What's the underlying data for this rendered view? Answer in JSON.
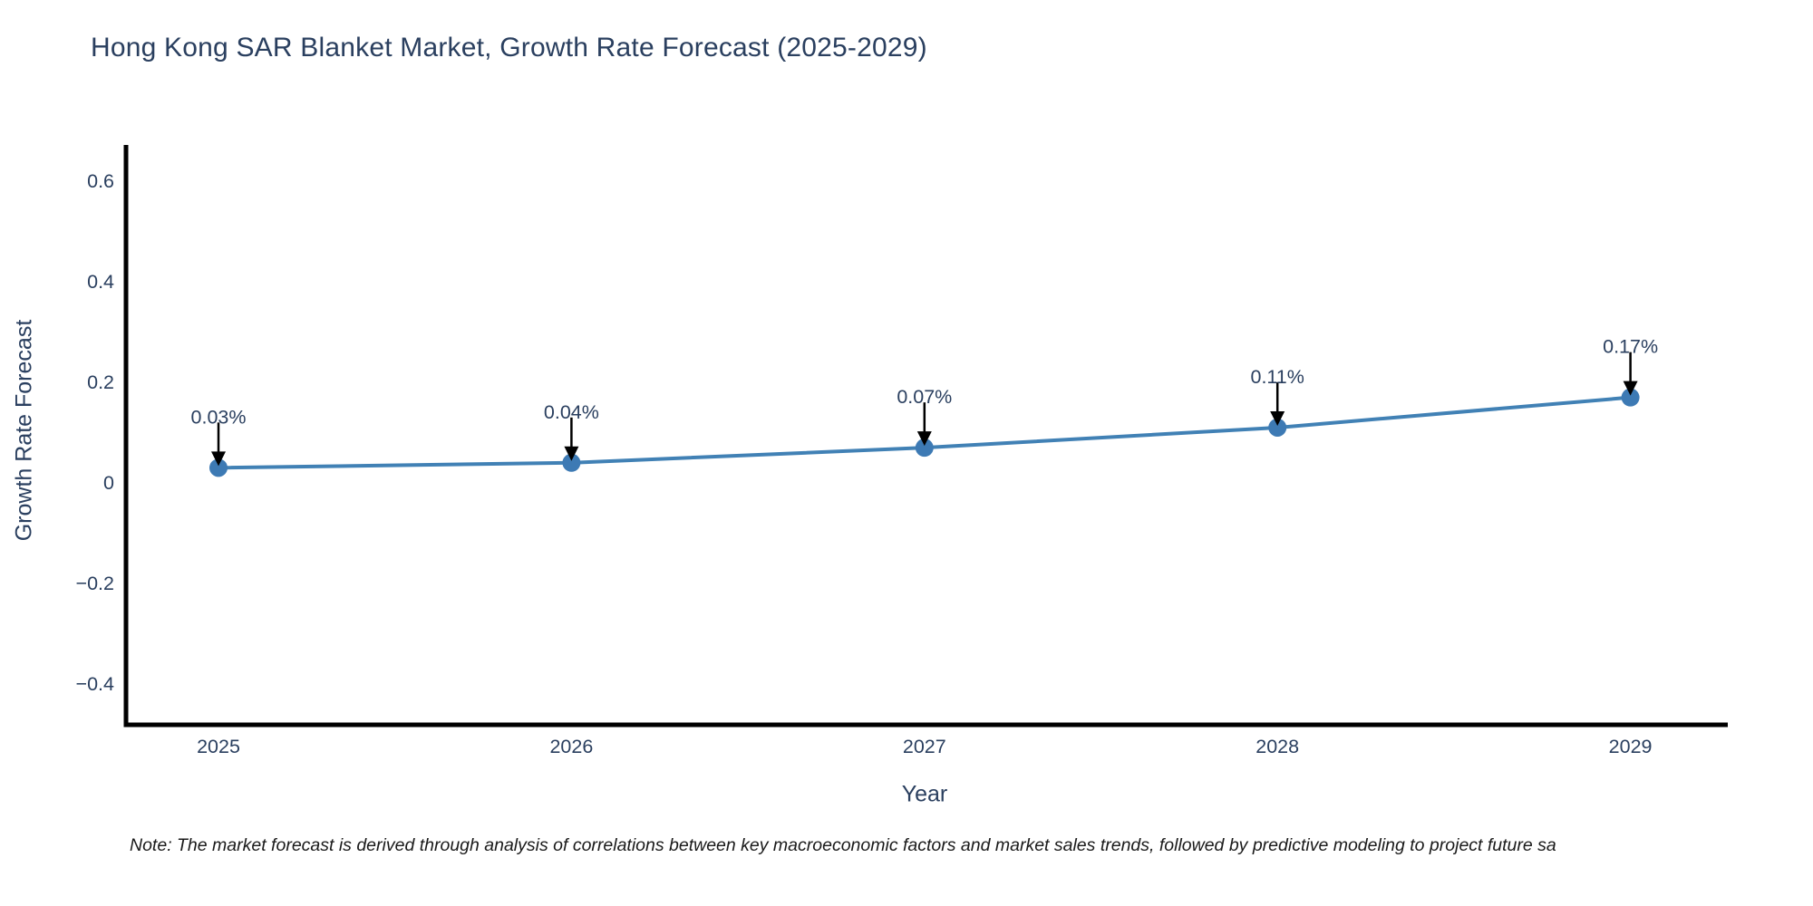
{
  "title": "Hong Kong SAR Blanket Market, Growth Rate Forecast (2025-2029)",
  "note": "Note: The market forecast is derived through analysis of correlations between key macroeconomic factors and market sales trends, followed by predictive modeling to project future sa",
  "chart_data": {
    "type": "line",
    "title": "Hong Kong SAR Blanket Market, Growth Rate Forecast (2025-2029)",
    "xlabel": "Year",
    "ylabel": "Growth Rate Forecast",
    "x": [
      2025,
      2026,
      2027,
      2028,
      2029
    ],
    "values": [
      0.03,
      0.04,
      0.07,
      0.11,
      0.17
    ],
    "point_labels": [
      "0.03%",
      "0.04%",
      "0.07%",
      "0.11%",
      "0.17%"
    ],
    "xticks": [
      "2025",
      "2026",
      "2027",
      "2028",
      "2029"
    ],
    "yticks": [
      0.6,
      0.4,
      0.2,
      0,
      -0.2,
      -0.4
    ],
    "ylim": [
      -0.48,
      0.67
    ],
    "grid": false,
    "legend": "none",
    "colors": {
      "line": "#4181b5",
      "marker": "#3d7ab4",
      "axis": "#000000",
      "text": "#2a3f5f",
      "annotation_arrow": "#000000"
    }
  }
}
